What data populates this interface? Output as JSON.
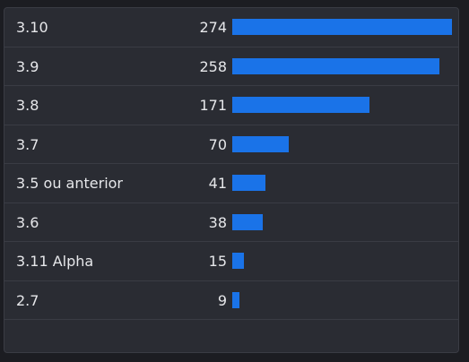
{
  "chart_data": {
    "type": "bar",
    "orientation": "horizontal",
    "categories": [
      "3.10",
      "3.9",
      "3.8",
      "3.7",
      "3.5 ou anterior",
      "3.6",
      "3.11 Alpha",
      "2.7"
    ],
    "values": [
      274,
      258,
      171,
      70,
      41,
      38,
      15,
      9
    ],
    "xlim": [
      0,
      274
    ],
    "grid": false,
    "bar_color": "#1a73e8"
  }
}
